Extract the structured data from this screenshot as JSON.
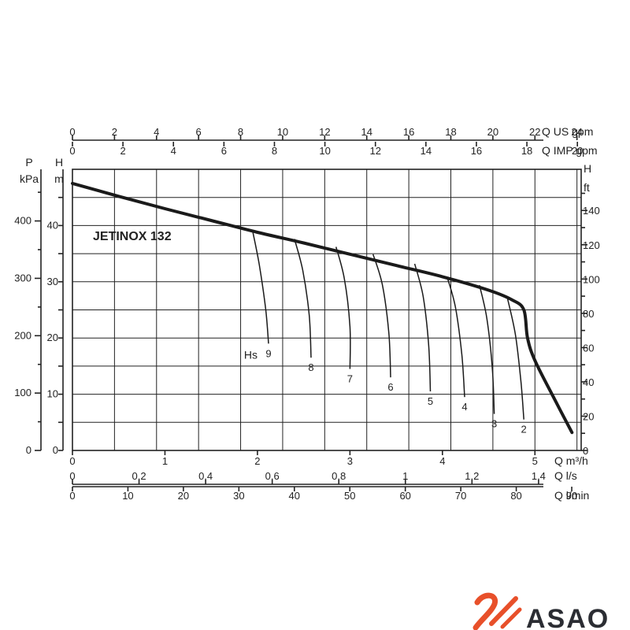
{
  "chart_data": {
    "type": "line",
    "title": "JETINOX 132",
    "x_axes": [
      {
        "id": "m3h",
        "unit": "Q m³/h",
        "min": 0,
        "max": 5.5,
        "ticks": [
          "0",
          "1",
          "2",
          "3",
          "4",
          "5"
        ],
        "tick_values": [
          0,
          1,
          2,
          3,
          4,
          5
        ]
      },
      {
        "id": "ls",
        "unit": "Q l/s",
        "min": 0,
        "max": 1.528,
        "ticks": [
          "0",
          "0,2",
          "0,4",
          "0,6",
          "0,8",
          "1",
          "1,2",
          "1,4"
        ],
        "tick_values": [
          0,
          0.2,
          0.4,
          0.6,
          0.8,
          1.0,
          1.2,
          1.4
        ]
      },
      {
        "id": "lmin",
        "unit": "Q l/min",
        "min": 0,
        "max": 91.7,
        "ticks": [
          "0",
          "10",
          "20",
          "30",
          "40",
          "50",
          "60",
          "70",
          "80",
          "90"
        ],
        "tick_values": [
          0,
          10,
          20,
          30,
          40,
          50,
          60,
          70,
          80,
          90
        ]
      },
      {
        "id": "usgpm",
        "unit": "Q US gpm",
        "min": 0,
        "max": 24.2,
        "ticks": [
          "0",
          "2",
          "4",
          "6",
          "8",
          "10",
          "12",
          "14",
          "16",
          "18",
          "20",
          "22",
          "24"
        ],
        "tick_values": [
          0,
          2,
          4,
          6,
          8,
          10,
          12,
          14,
          16,
          18,
          20,
          22,
          24
        ]
      },
      {
        "id": "impgpm",
        "unit": "Q IMP gpm",
        "min": 0,
        "max": 20.15,
        "ticks": [
          "0",
          "2",
          "4",
          "6",
          "8",
          "10",
          "12",
          "14",
          "16",
          "18",
          "20"
        ],
        "tick_values": [
          0,
          2,
          4,
          6,
          8,
          10,
          12,
          14,
          16,
          18,
          20
        ]
      }
    ],
    "y_axes": [
      {
        "id": "kpa",
        "label": "P",
        "unit": "kPa",
        "min": 0,
        "max": 490,
        "ticks": [
          "0",
          "100",
          "200",
          "300",
          "400"
        ],
        "tick_values": [
          0,
          100,
          200,
          300,
          400
        ]
      },
      {
        "id": "m",
        "label": "H",
        "unit": "m",
        "min": 0,
        "max": 50,
        "ticks": [
          "0",
          "10",
          "20",
          "30",
          "40"
        ],
        "tick_values": [
          0,
          10,
          20,
          30,
          40
        ]
      },
      {
        "id": "ft",
        "label": "H",
        "unit": "ft",
        "min": 0,
        "max": 164,
        "ticks": [
          "0",
          "20",
          "40",
          "60",
          "80",
          "100",
          "120",
          "140"
        ],
        "tick_values": [
          0,
          20,
          40,
          60,
          80,
          100,
          120,
          140
        ]
      }
    ],
    "grid": true,
    "main_curve": {
      "x": [
        0,
        0.5,
        1.0,
        1.5,
        2.0,
        2.5,
        3.0,
        3.5,
        4.0,
        4.5,
        4.75,
        4.88,
        4.92,
        5.0,
        5.2,
        5.4
      ],
      "y": [
        47.5,
        45.2,
        43.0,
        40.9,
        38.8,
        36.9,
        34.9,
        32.9,
        30.9,
        28.5,
        26.8,
        25.0,
        20.0,
        16.0,
        9.5,
        3.2
      ]
    },
    "hs_label": "Hs",
    "hs_curves": [
      {
        "name": "9",
        "x": [
          1.95,
          2.02,
          2.09,
          2.12
        ],
        "y": [
          38.9,
          33.0,
          25.0,
          19.0
        ]
      },
      {
        "name": "8",
        "x": [
          2.4,
          2.49,
          2.56,
          2.58
        ],
        "y": [
          37.6,
          32.0,
          24.0,
          16.5
        ]
      },
      {
        "name": "7",
        "x": [
          2.85,
          2.94,
          3.0,
          3.0
        ],
        "y": [
          36.2,
          30.5,
          22.0,
          14.5
        ]
      },
      {
        "name": "6",
        "x": [
          3.25,
          3.35,
          3.42,
          3.44
        ],
        "y": [
          34.9,
          29.5,
          21.0,
          13.0
        ]
      },
      {
        "name": "5",
        "x": [
          3.7,
          3.79,
          3.85,
          3.87
        ],
        "y": [
          33.2,
          27.5,
          19.0,
          10.5
        ]
      },
      {
        "name": "4",
        "x": [
          4.05,
          4.14,
          4.21,
          4.24
        ],
        "y": [
          30.9,
          25.5,
          17.0,
          9.5
        ]
      },
      {
        "name": "3",
        "x": [
          4.4,
          4.48,
          4.54,
          4.56
        ],
        "y": [
          29.4,
          23.5,
          14.5,
          6.5
        ]
      },
      {
        "name": "2",
        "x": [
          4.7,
          4.79,
          4.85,
          4.88
        ],
        "y": [
          27.3,
          20.5,
          12.0,
          5.5
        ]
      }
    ]
  },
  "logo": {
    "text": "ASAO",
    "color": "#e8502a"
  }
}
